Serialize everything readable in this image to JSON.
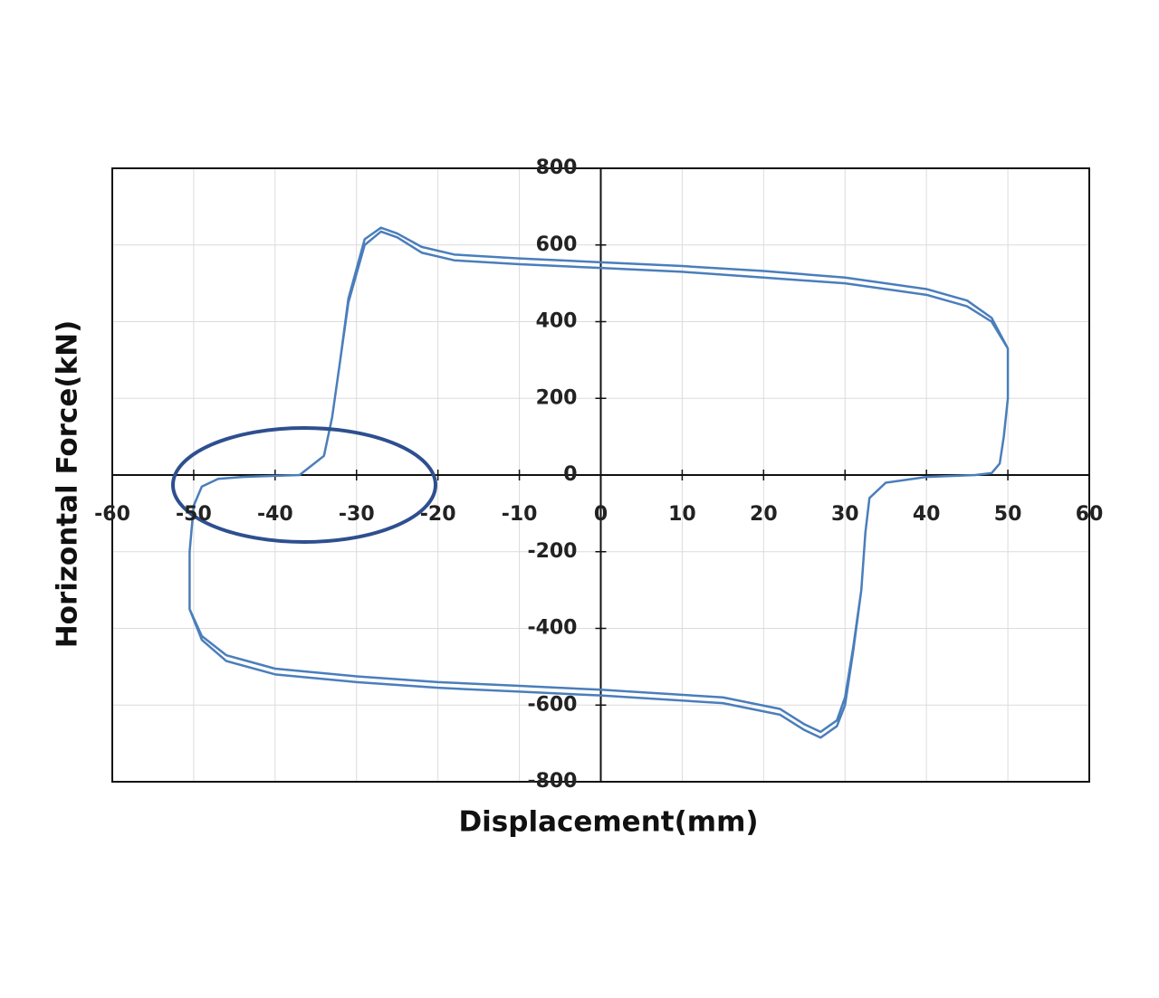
{
  "chart_data": {
    "type": "line",
    "x_label": "Displacement(mm)",
    "y_label": "Horizontal Force(kN)",
    "color": "#4a7ebb",
    "grid": true,
    "xlim": [
      -60,
      60
    ],
    "xticks": [
      -60,
      -50,
      -40,
      -30,
      -20,
      -10,
      0,
      10,
      20,
      30,
      40,
      50,
      60
    ],
    "ylim": [
      -800,
      800
    ],
    "yticks": [
      -800,
      -600,
      -400,
      -200,
      0,
      200,
      400,
      600,
      800
    ],
    "x": [
      -37,
      -34,
      -33,
      -32,
      -31,
      -29,
      -27,
      -25,
      -22,
      -18,
      -10,
      0,
      10,
      20,
      30,
      40,
      45,
      48,
      50,
      50,
      49.5,
      49,
      48,
      46,
      40,
      35,
      33,
      32.5,
      32,
      31,
      30,
      29,
      27,
      25,
      22,
      15,
      0,
      -10,
      -20,
      -30,
      -40,
      -46,
      -49,
      -50.5,
      -50.5,
      -50,
      -49,
      -47,
      -44,
      -40,
      -37,
      -34,
      -33,
      -32,
      -31,
      -29,
      -27,
      -25,
      -22,
      -18,
      -10,
      0,
      10,
      20,
      30,
      40,
      45,
      48,
      50,
      50,
      49.5,
      49,
      48,
      46,
      40,
      35,
      33,
      32.5,
      32,
      31,
      30,
      29,
      27,
      25,
      22,
      15,
      0,
      -10,
      -20,
      -30,
      -40,
      -46,
      -49,
      -50.5,
      -50.5,
      -50,
      -49,
      -47,
      -44,
      -40,
      -37
    ],
    "values": [
      0,
      50,
      150,
      300,
      450,
      600,
      635,
      620,
      580,
      560,
      550,
      540,
      530,
      515,
      500,
      470,
      440,
      400,
      330,
      200,
      100,
      30,
      5,
      0,
      -5,
      -20,
      -60,
      -150,
      -300,
      -450,
      -580,
      -640,
      -670,
      -650,
      -610,
      -580,
      -560,
      -550,
      -540,
      -525,
      -505,
      -470,
      -420,
      -350,
      -200,
      -80,
      -30,
      -10,
      -5,
      -2,
      0,
      50,
      150,
      300,
      460,
      615,
      645,
      630,
      595,
      575,
      565,
      555,
      545,
      532,
      515,
      485,
      455,
      410,
      330,
      200,
      100,
      30,
      5,
      0,
      -5,
      -20,
      -60,
      -150,
      -300,
      -460,
      -600,
      -655,
      -685,
      -665,
      -625,
      -595,
      -575,
      -565,
      -555,
      -540,
      -520,
      -485,
      -430,
      -350,
      -200,
      -80,
      -30,
      -10,
      -5,
      -2,
      0
    ]
  }
}
